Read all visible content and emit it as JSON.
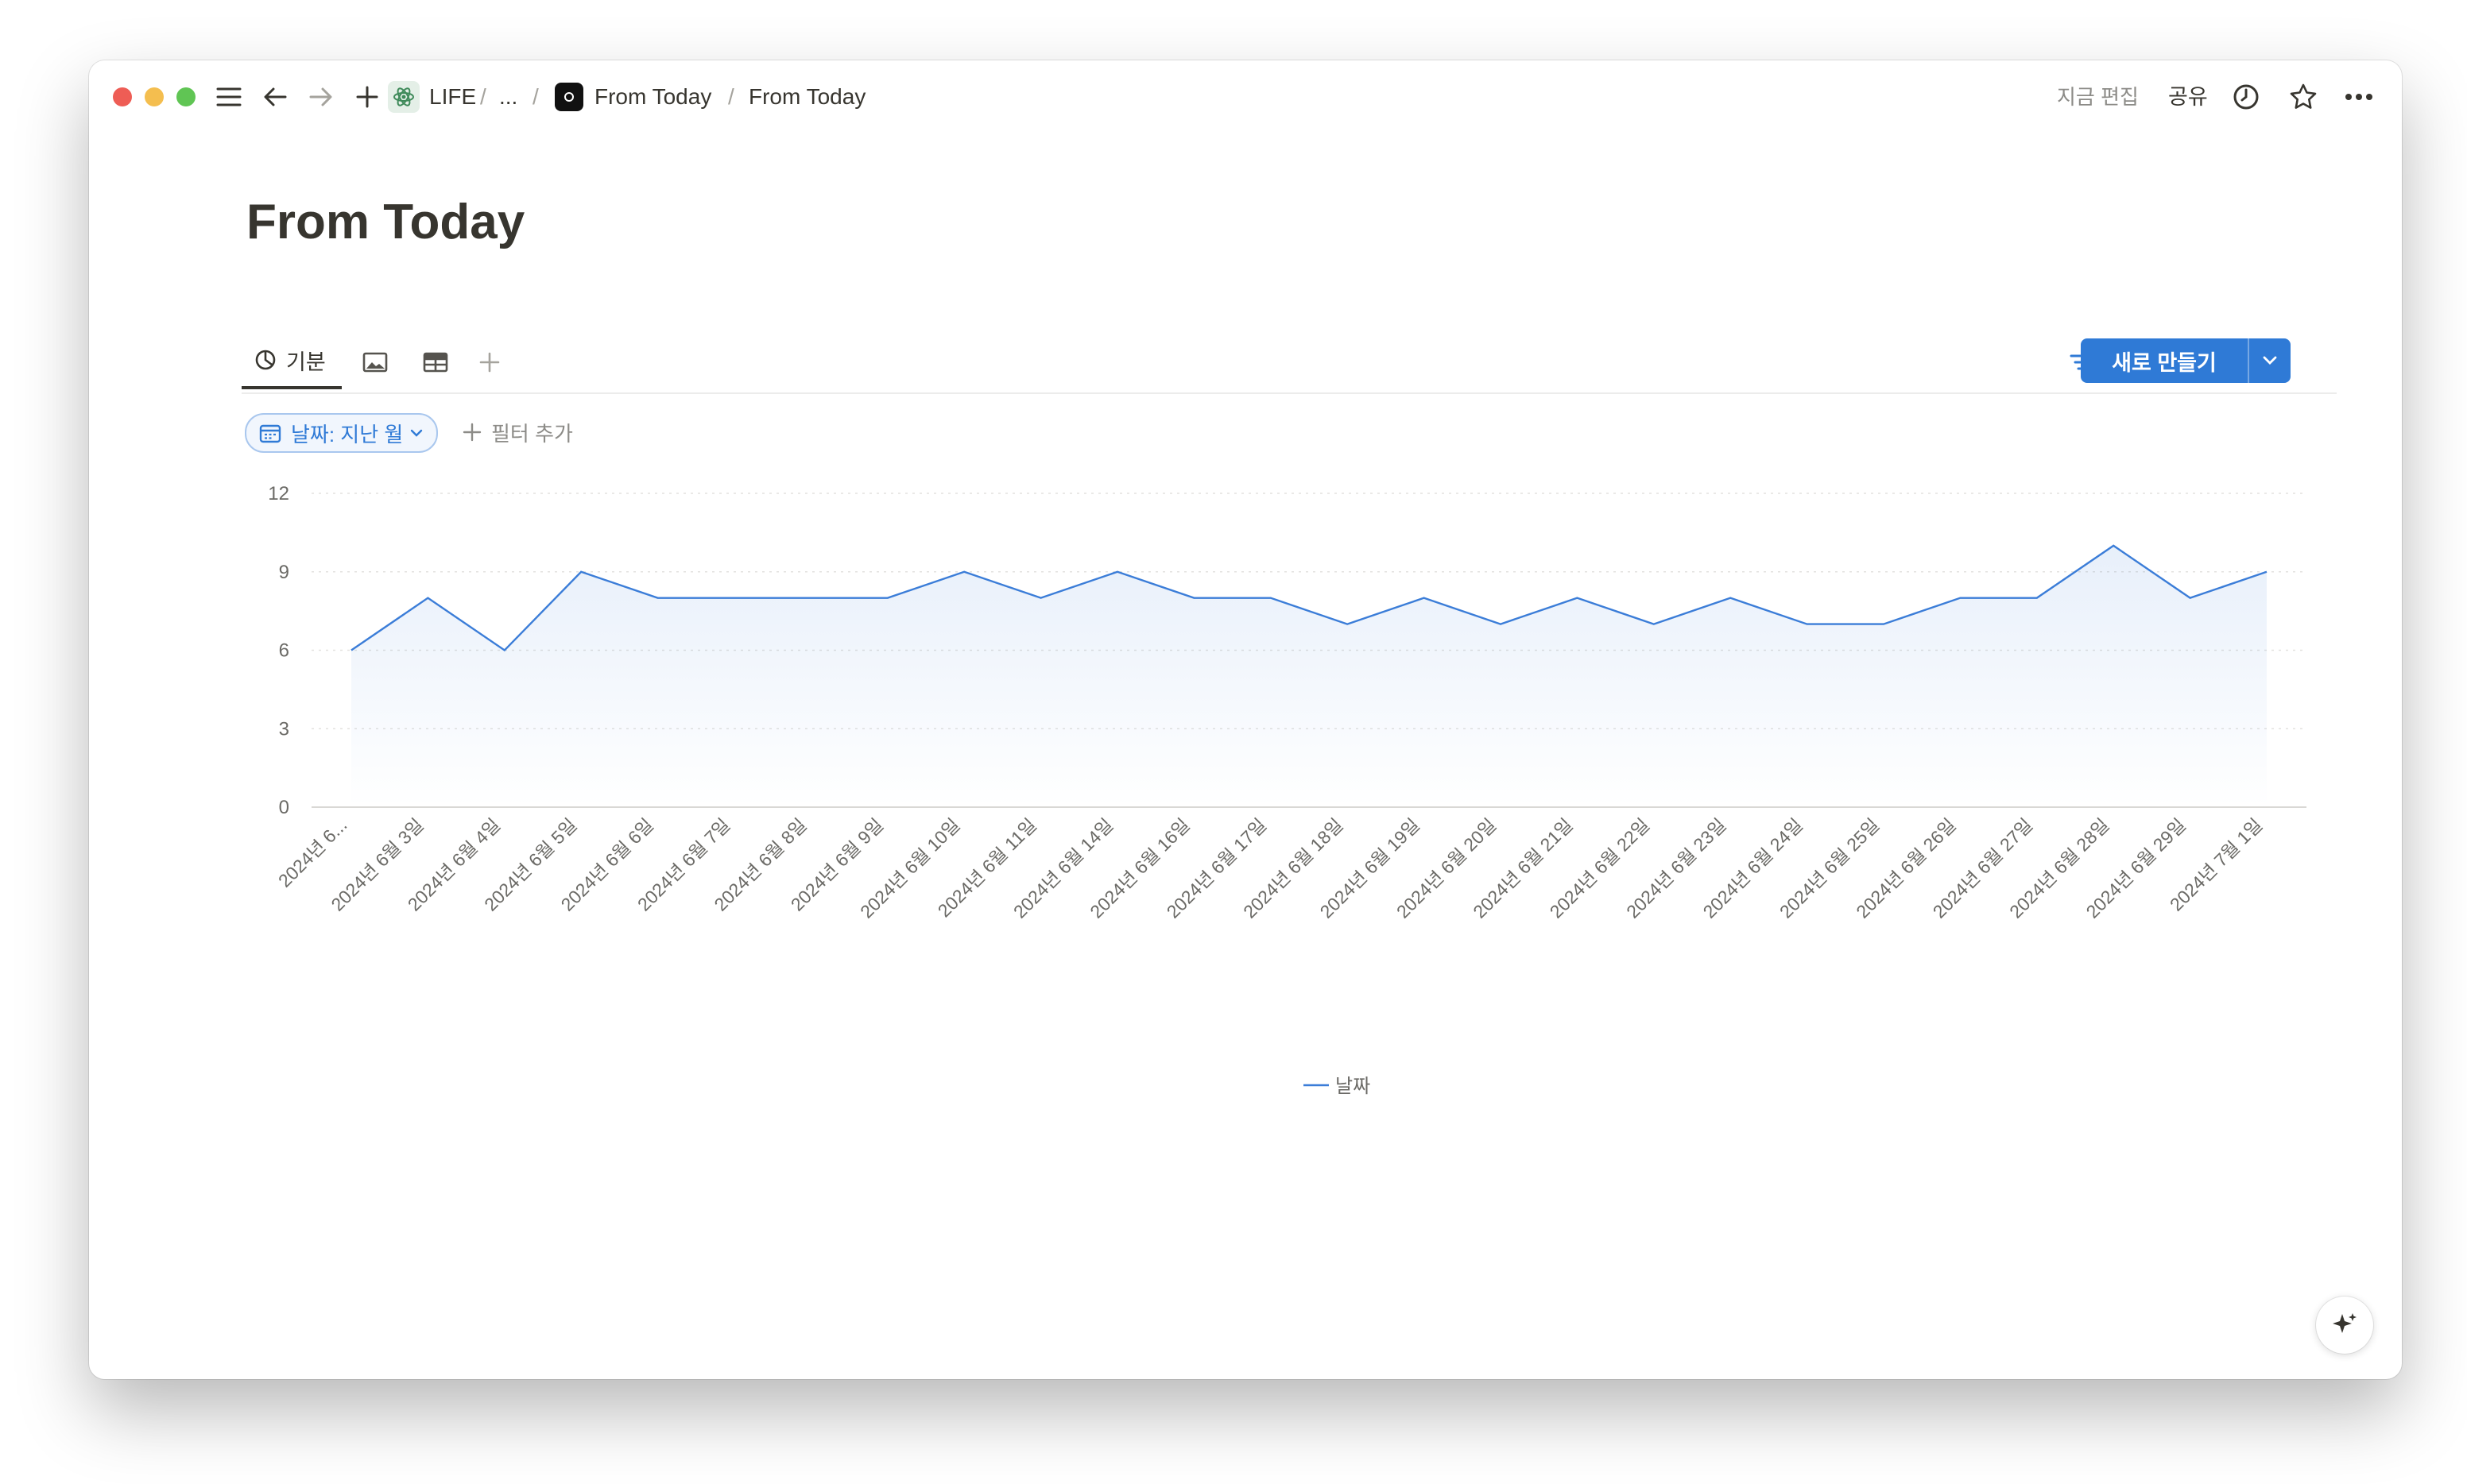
{
  "window": {
    "traffic_lights": {
      "close": "#ee5d55",
      "minimize": "#f4be4f",
      "zoom": "#60c554"
    }
  },
  "topbar": {
    "breadcrumb": [
      {
        "label": "LIFE",
        "icon": "atom-icon"
      },
      {
        "label": "..."
      },
      {
        "label": "From Today",
        "icon": "page-dark-icon"
      },
      {
        "label": "From Today"
      }
    ],
    "edited_label": "지금 편집",
    "share_label": "공유"
  },
  "page": {
    "title": "From Today"
  },
  "tabs": [
    {
      "label": "기분",
      "icon": "chart-icon",
      "active": true
    },
    {
      "label": "",
      "icon": "gallery-icon",
      "active": false
    },
    {
      "label": "",
      "icon": "table-icon",
      "active": false
    }
  ],
  "toolbar": {
    "new_button_label": "새로 만들기",
    "accent": "#2f7ad6"
  },
  "filters": {
    "active_filter_label": "날짜: 지난 월",
    "add_filter_label": "필터 추가"
  },
  "chart_data": {
    "type": "area",
    "x": [
      "2024년 6...",
      "2024년 6월 3일",
      "2024년 6월 4일",
      "2024년 6월 5일",
      "2024년 6월 6일",
      "2024년 6월 7일",
      "2024년 6월 8일",
      "2024년 6월 9일",
      "2024년 6월 10일",
      "2024년 6월 11일",
      "2024년 6월 14일",
      "2024년 6월 16일",
      "2024년 6월 17일",
      "2024년 6월 18일",
      "2024년 6월 19일",
      "2024년 6월 20일",
      "2024년 6월 21일",
      "2024년 6월 22일",
      "2024년 6월 23일",
      "2024년 6월 24일",
      "2024년 6월 25일",
      "2024년 6월 26일",
      "2024년 6월 27일",
      "2024년 6월 28일",
      "2024년 6월 29일",
      "2024년 7월 1일"
    ],
    "series": [
      {
        "name": "날짜",
        "values": [
          6,
          8,
          6,
          9,
          8,
          8,
          8,
          8,
          9,
          8,
          9,
          8,
          8,
          7,
          8,
          7,
          8,
          7,
          8,
          7,
          7,
          8,
          8,
          10,
          8,
          9
        ],
        "color": "#3b7dd8"
      }
    ],
    "yticks": [
      0,
      3,
      6,
      9,
      12
    ],
    "ylim": [
      0,
      12
    ],
    "grid": true,
    "legend": "bottom-center"
  }
}
